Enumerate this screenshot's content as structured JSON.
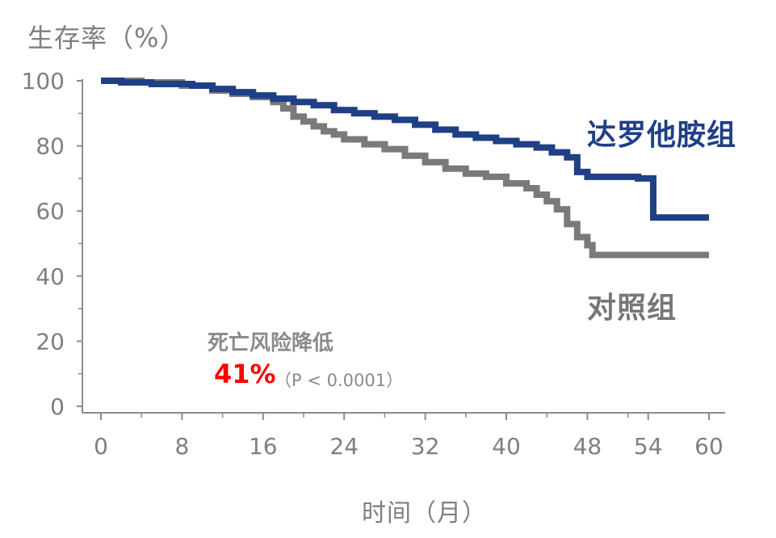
{
  "chart_data": {
    "type": "line",
    "title": "",
    "ylabel": "生存率（%）",
    "xlabel": "时间（月）",
    "xlim": [
      0,
      60
    ],
    "ylim": [
      0,
      100
    ],
    "x_ticks": [
      0,
      8,
      16,
      24,
      32,
      40,
      48,
      54,
      60
    ],
    "y_ticks": [
      0,
      20,
      40,
      60,
      80,
      100
    ],
    "grid": false,
    "series": [
      {
        "name": "达罗他胺组",
        "color": "#1f3f86",
        "points": [
          [
            0,
            100
          ],
          [
            2,
            99.5
          ],
          [
            5,
            99
          ],
          [
            9,
            98.5
          ],
          [
            11,
            97.5
          ],
          [
            13,
            96.5
          ],
          [
            15,
            95.5
          ],
          [
            17,
            94.5
          ],
          [
            19,
            93.5
          ],
          [
            21,
            92.5
          ],
          [
            23,
            91
          ],
          [
            25,
            90
          ],
          [
            27,
            89
          ],
          [
            29,
            88
          ],
          [
            31,
            86.5
          ],
          [
            33,
            85
          ],
          [
            35,
            83.5
          ],
          [
            37,
            82.5
          ],
          [
            39,
            81.5
          ],
          [
            41,
            80.5
          ],
          [
            43,
            79.5
          ],
          [
            44.5,
            78
          ],
          [
            46,
            76.5
          ],
          [
            47,
            72
          ],
          [
            48,
            70.5
          ],
          [
            53,
            70
          ],
          [
            54.5,
            64
          ],
          [
            54.5,
            58
          ],
          [
            60,
            58
          ]
        ]
      },
      {
        "name": "对照组",
        "color": "#7a7a7a",
        "points": [
          [
            0,
            100
          ],
          [
            4,
            99.5
          ],
          [
            8,
            98.5
          ],
          [
            11,
            97
          ],
          [
            13,
            96
          ],
          [
            15,
            95
          ],
          [
            17,
            93.5
          ],
          [
            18,
            91.5
          ],
          [
            19,
            89
          ],
          [
            20,
            87.5
          ],
          [
            21,
            86
          ],
          [
            22,
            84.5
          ],
          [
            23,
            83.5
          ],
          [
            24,
            82
          ],
          [
            26,
            80.5
          ],
          [
            28,
            79
          ],
          [
            30,
            77
          ],
          [
            32,
            75
          ],
          [
            34,
            73
          ],
          [
            36,
            71.5
          ],
          [
            38,
            70.5
          ],
          [
            40,
            68.5
          ],
          [
            42,
            67
          ],
          [
            43,
            65
          ],
          [
            44,
            63
          ],
          [
            45,
            60.5
          ],
          [
            46,
            56
          ],
          [
            47,
            52
          ],
          [
            48,
            49.5
          ],
          [
            48.5,
            46.5
          ],
          [
            60,
            46.5
          ]
        ]
      }
    ],
    "annotations": {
      "title": "死亡风险降低",
      "value": "41%",
      "p_text": "（P < 0.0001）"
    }
  }
}
